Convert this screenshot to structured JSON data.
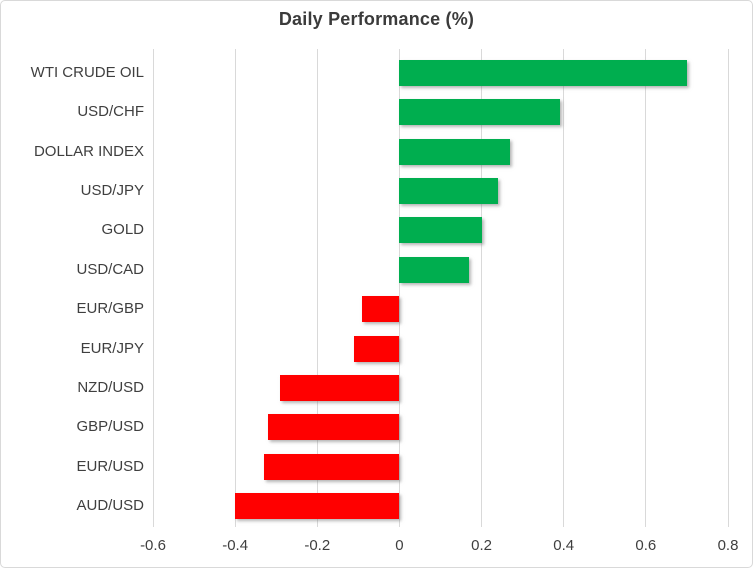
{
  "chart_data": {
    "type": "bar",
    "orientation": "horizontal",
    "title": "Daily Performance (%)",
    "categories": [
      "WTI CRUDE OIL",
      "USD/CHF",
      "DOLLAR INDEX",
      "USD/JPY",
      "GOLD",
      "USD/CAD",
      "EUR/GBP",
      "EUR/JPY",
      "NZD/USD",
      "GBP/USD",
      "EUR/USD",
      "AUD/USD"
    ],
    "values": [
      0.7,
      0.39,
      0.27,
      0.24,
      0.2,
      0.17,
      -0.09,
      -0.11,
      -0.29,
      -0.32,
      -0.33,
      -0.4
    ],
    "x_tick_labels": [
      "-0.6",
      "-0.4",
      "-0.2",
      "0",
      "0.2",
      "0.4",
      "0.6",
      "0.8"
    ],
    "x_tick_values": [
      -0.6,
      -0.4,
      -0.2,
      0,
      0.2,
      0.4,
      0.6,
      0.8
    ],
    "xlim": [
      -0.6,
      0.8
    ],
    "grid": "vertical",
    "legend": "none",
    "colors": {
      "positive": "#00AE4F",
      "negative": "#FF0000",
      "gridline": "#d9d9d9",
      "text": "#3f3f3f",
      "frame_border": "#d9d9d9",
      "background": "#ffffff"
    }
  }
}
